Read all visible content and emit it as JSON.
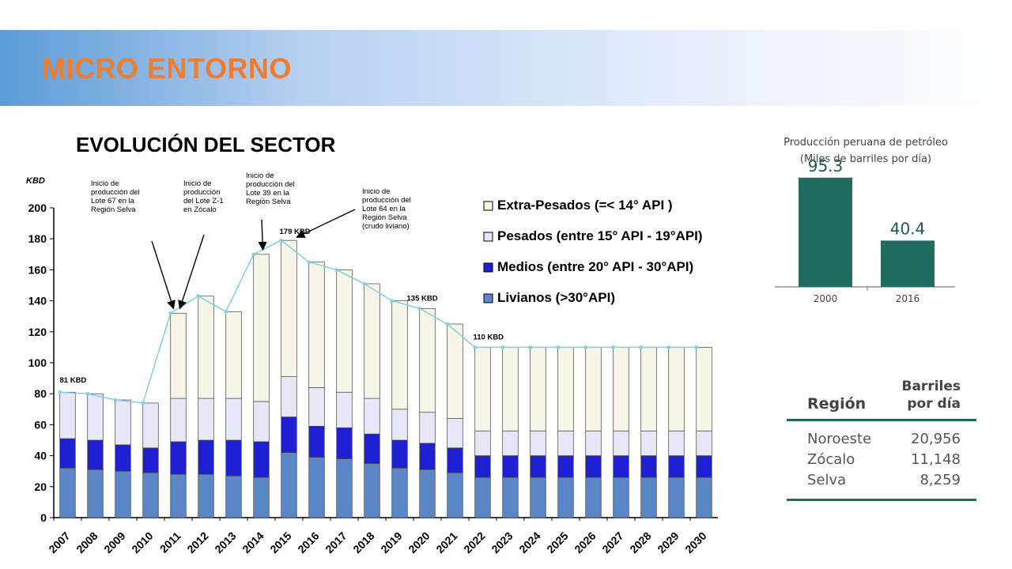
{
  "header": {
    "title": "MICRO ENTORNO"
  },
  "section": {
    "title": "EVOLUCIÓN DEL SECTOR"
  },
  "colors": {
    "livianos": "#5b86c8",
    "medios": "#1f1fd4",
    "pesados": "#e7e7f7",
    "extra_pesados": "#f7f5e7",
    "trend_line": "#7fd1e0",
    "production_bars": "#1f6b5f",
    "banner_title": "#ed7d31"
  },
  "chart_data": [
    {
      "type": "bar",
      "stacked": true,
      "ylabel": "KBD",
      "ylim": [
        0,
        200
      ],
      "yticks": [
        0,
        20,
        40,
        60,
        80,
        100,
        120,
        140,
        160,
        180,
        200
      ],
      "grid": false,
      "legend_position": "top-right",
      "categories": [
        "2007",
        "2008",
        "2009",
        "2010",
        "2011",
        "2012",
        "2013",
        "2014",
        "2015",
        "2016",
        "2017",
        "2018",
        "2019",
        "2020",
        "2021",
        "2022",
        "2023",
        "2024",
        "2025",
        "2026",
        "2027",
        "2028",
        "2029",
        "2030"
      ],
      "series": [
        {
          "name": "Livianos (>30°API)",
          "values": [
            32,
            31,
            30,
            29,
            28,
            28,
            27,
            26,
            42,
            39,
            38,
            35,
            32,
            31,
            29,
            26,
            26,
            26,
            26,
            26,
            26,
            26,
            26,
            26
          ]
        },
        {
          "name": "Medios (entre 20° API - 30°API)",
          "values": [
            19,
            19,
            17,
            16,
            21,
            22,
            23,
            23,
            23,
            20,
            20,
            19,
            18,
            17,
            16,
            14,
            14,
            14,
            14,
            14,
            14,
            14,
            14,
            14
          ]
        },
        {
          "name": "Pesados (entre 15° API - 19°API)",
          "values": [
            30,
            30,
            29,
            29,
            28,
            27,
            27,
            26,
            26,
            25,
            23,
            23,
            20,
            20,
            19,
            16,
            16,
            16,
            16,
            16,
            16,
            16,
            16,
            16
          ]
        },
        {
          "name": "Extra-Pesados (=< 14° API )",
          "values": [
            0,
            0,
            0,
            0,
            55,
            66,
            56,
            95,
            88,
            81,
            79,
            74,
            70,
            67,
            61,
            54,
            54,
            54,
            54,
            54,
            54,
            54,
            54,
            54
          ]
        }
      ],
      "totals": [
        81,
        80,
        76,
        74,
        132,
        143,
        133,
        170,
        179,
        165,
        160,
        151,
        140,
        135,
        125,
        110,
        110,
        110,
        110,
        110,
        110,
        110,
        110,
        110
      ],
      "data_labels": [
        {
          "category": "2007",
          "text": "81 KBD"
        },
        {
          "category": "2015",
          "text": "179 KBD"
        },
        {
          "category": "2020",
          "text": "135 KBD"
        },
        {
          "category": "2022",
          "text": "110 KBD"
        }
      ],
      "annotations": [
        {
          "category": "2011",
          "lines": [
            "Inicio de",
            "producción del",
            "Lote 67 en la",
            "Región Selva"
          ]
        },
        {
          "category": "2011",
          "lines": [
            "Inicio de",
            "producción",
            "del Lote Z-1",
            "en Zócalo"
          ]
        },
        {
          "category": "2014",
          "lines": [
            "Inicio de",
            "producción del",
            "Lote 39 en la",
            "Región Selva"
          ]
        },
        {
          "category": "2015",
          "lines": [
            "Inicio de",
            "producción del",
            "Lote 64 en la",
            "Región Selva",
            "(crudo liviano)"
          ]
        }
      ]
    },
    {
      "type": "bar",
      "title": "Producción peruana de petróleo",
      "subtitle": "(Miles de barriles por día)",
      "categories": [
        "2000",
        "2016"
      ],
      "values": [
        95.3,
        40.4
      ]
    },
    {
      "type": "table",
      "columns": [
        "Región",
        "Barriles por día"
      ],
      "rows": [
        [
          "Noroeste",
          "20,956"
        ],
        [
          "Zócalo",
          "11,148"
        ],
        [
          "Selva",
          "8,259"
        ]
      ]
    }
  ]
}
